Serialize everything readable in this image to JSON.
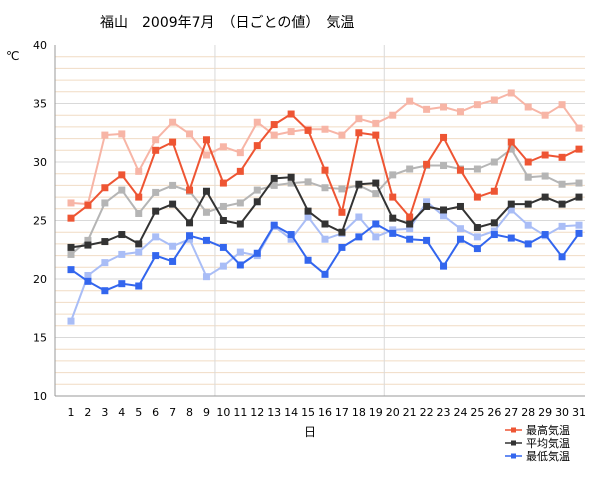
{
  "chart_data": {
    "type": "line",
    "title": "福山　2009年7月　（日ごとの値）　気温",
    "ylabel": "℃",
    "xlabel": "日",
    "ylim": [
      10,
      40
    ],
    "yticks": [
      10,
      15,
      20,
      25,
      30,
      35,
      40
    ],
    "grid": true,
    "legend_position": "bottom-right",
    "x": [
      1,
      2,
      3,
      4,
      5,
      6,
      7,
      8,
      9,
      10,
      11,
      12,
      13,
      14,
      15,
      16,
      17,
      18,
      19,
      20,
      21,
      22,
      23,
      24,
      25,
      26,
      27,
      28,
      29,
      30,
      31
    ],
    "series": [
      {
        "name": "最高気温",
        "color": "#ee5533",
        "values": [
          25.2,
          26.3,
          27.8,
          28.9,
          27.0,
          31.0,
          31.7,
          27.6,
          31.9,
          28.2,
          29.2,
          31.4,
          33.2,
          34.1,
          32.7,
          29.3,
          25.7,
          32.5,
          32.3,
          27.0,
          25.3,
          29.8,
          32.1,
          29.3,
          27.0,
          27.5,
          31.7,
          30.0,
          30.6,
          30.4,
          31.1
        ]
      },
      {
        "name": "平均気温",
        "color": "#333333",
        "values": [
          22.7,
          22.9,
          23.2,
          23.8,
          23.0,
          25.8,
          26.4,
          24.8,
          27.5,
          25.0,
          24.7,
          26.6,
          28.6,
          28.7,
          25.8,
          24.7,
          24.0,
          28.1,
          28.2,
          25.2,
          24.7,
          26.2,
          25.9,
          26.2,
          24.4,
          24.8,
          26.4,
          26.4,
          27.0,
          26.4,
          27.0
        ]
      },
      {
        "name": "最低気温",
        "color": "#3366ee",
        "values": [
          20.8,
          19.8,
          19.0,
          19.6,
          19.4,
          22.0,
          21.5,
          23.7,
          23.3,
          22.7,
          21.2,
          22.2,
          24.6,
          23.8,
          21.6,
          20.4,
          22.7,
          23.6,
          24.7,
          23.9,
          23.4,
          23.3,
          21.1,
          23.4,
          22.6,
          23.8,
          23.5,
          23.0,
          23.8,
          21.9,
          23.9
        ]
      }
    ],
    "normal_series": [
      {
        "color": "#f7b5a6",
        "values": [
          26.5,
          26.4,
          32.3,
          32.4,
          29.2,
          31.9,
          33.4,
          32.4,
          30.6,
          31.3,
          30.8,
          33.4,
          32.3,
          32.6,
          32.8,
          32.8,
          32.3,
          33.7,
          33.3,
          34.0,
          35.2,
          34.5,
          34.7,
          34.3,
          34.9,
          35.3,
          35.9,
          34.7,
          34.0,
          34.9,
          32.9
        ]
      },
      {
        "color": "#b5b5b5",
        "values": [
          22.1,
          23.3,
          26.5,
          27.6,
          25.6,
          27.4,
          28.0,
          27.5,
          25.7,
          26.2,
          26.5,
          27.6,
          28.0,
          28.2,
          28.3,
          27.8,
          27.7,
          28.0,
          27.3,
          28.9,
          29.4,
          29.7,
          29.7,
          29.4,
          29.4,
          30.0,
          31.1,
          28.7,
          28.8,
          28.1,
          28.2
        ]
      },
      {
        "color": "#a9bdf6",
        "values": [
          16.4,
          20.3,
          21.4,
          22.1,
          22.3,
          23.6,
          22.8,
          23.4,
          20.2,
          21.1,
          22.3,
          22.0,
          24.5,
          23.4,
          25.3,
          23.4,
          23.9,
          25.3,
          23.6,
          24.2,
          24.3,
          26.6,
          25.4,
          24.3,
          23.6,
          24.1,
          25.9,
          24.6,
          23.7,
          24.5,
          24.6
        ]
      }
    ]
  }
}
